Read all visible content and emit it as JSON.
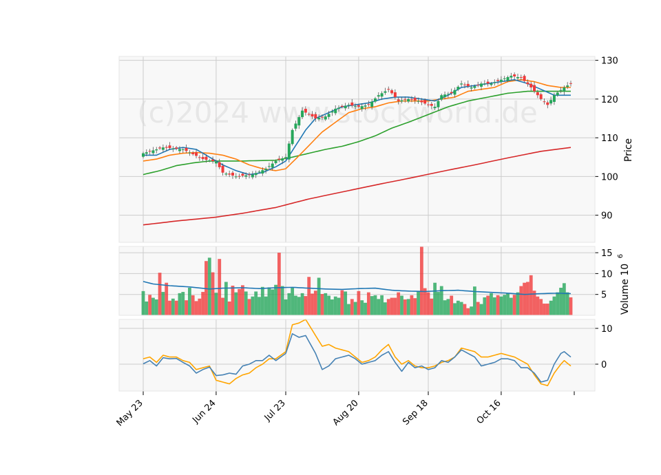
{
  "chart_data": {
    "type": "candlestick",
    "watermark": "(c)2024 www.stockworld.de",
    "colors": {
      "up": "#26a65b",
      "down": "#f03b3b",
      "ma_short": "#1f77b4",
      "ma_mid": "#ff7f0e",
      "ma_long": "#2ca02c",
      "ma_very_long": "#d62728",
      "volume_avg": "#1f77b4",
      "osc_line_1": "#4682b4",
      "osc_line_2": "#ffa500",
      "grid": "#cccccc",
      "panel_bg": "#f8f8f8"
    },
    "x_ticks": [
      {
        "label": "May 23",
        "index": 0
      },
      {
        "label": "Jun 24",
        "index": 22
      },
      {
        "label": "Jul 23",
        "index": 43
      },
      {
        "label": "Aug 20",
        "index": 65
      },
      {
        "label": "Sep 18",
        "index": 86
      },
      {
        "label": "Oct 16",
        "index": 108
      }
    ],
    "price_panel": {
      "ylabel": "Price",
      "ylim": [
        83,
        131
      ],
      "yticks": [
        90,
        100,
        110,
        120,
        130
      ],
      "anchors_close": [
        [
          0,
          106
        ],
        [
          6,
          107.5
        ],
        [
          12,
          107
        ],
        [
          18,
          104.5
        ],
        [
          22,
          103.8
        ],
        [
          24,
          101
        ],
        [
          28,
          100
        ],
        [
          33,
          100.5
        ],
        [
          37,
          102
        ],
        [
          40,
          104
        ],
        [
          43,
          105
        ],
        [
          45,
          112
        ],
        [
          48,
          117
        ],
        [
          52,
          115
        ],
        [
          55,
          115.5
        ],
        [
          58,
          117.5
        ],
        [
          62,
          118.5
        ],
        [
          65,
          118
        ],
        [
          68,
          118.5
        ],
        [
          71,
          121
        ],
        [
          74,
          122.5
        ],
        [
          77,
          119.5
        ],
        [
          80,
          120
        ],
        [
          83,
          119.5
        ],
        [
          86,
          118.5
        ],
        [
          88,
          118
        ],
        [
          90,
          121
        ],
        [
          93,
          121.5
        ],
        [
          96,
          124
        ],
        [
          99,
          123
        ],
        [
          102,
          124
        ],
        [
          105,
          124
        ],
        [
          108,
          125
        ],
        [
          111,
          126
        ],
        [
          114,
          125.5
        ],
        [
          117,
          123
        ],
        [
          120,
          120
        ],
        [
          122,
          118.5
        ],
        [
          124,
          121
        ],
        [
          127,
          123
        ],
        [
          129,
          124
        ]
      ],
      "ma_short_anchors": [
        [
          0,
          105.5
        ],
        [
          4,
          105.5
        ],
        [
          8,
          107
        ],
        [
          12,
          107.5
        ],
        [
          16,
          107
        ],
        [
          20,
          105
        ],
        [
          24,
          103
        ],
        [
          28,
          101.5
        ],
        [
          32,
          100.5
        ],
        [
          36,
          101
        ],
        [
          40,
          102.5
        ],
        [
          43,
          104
        ],
        [
          46,
          108
        ],
        [
          49,
          112
        ],
        [
          52,
          115
        ],
        [
          56,
          116.5
        ],
        [
          60,
          118
        ],
        [
          64,
          118.5
        ],
        [
          68,
          119
        ],
        [
          72,
          120
        ],
        [
          76,
          120.5
        ],
        [
          80,
          120.5
        ],
        [
          84,
          120
        ],
        [
          88,
          119.5
        ],
        [
          92,
          121
        ],
        [
          96,
          123
        ],
        [
          100,
          123.5
        ],
        [
          104,
          124
        ],
        [
          108,
          124.5
        ],
        [
          112,
          125
        ],
        [
          116,
          124
        ],
        [
          120,
          122.5
        ],
        [
          124,
          121
        ],
        [
          129,
          121
        ]
      ],
      "ma_mid_anchors": [
        [
          0,
          104
        ],
        [
          4,
          104.5
        ],
        [
          8,
          105.5
        ],
        [
          12,
          106
        ],
        [
          16,
          106.2
        ],
        [
          20,
          106
        ],
        [
          24,
          105.5
        ],
        [
          28,
          104.5
        ],
        [
          32,
          103
        ],
        [
          36,
          102
        ],
        [
          40,
          101.5
        ],
        [
          43,
          102
        ],
        [
          46,
          104.5
        ],
        [
          50,
          108
        ],
        [
          54,
          111.5
        ],
        [
          58,
          114
        ],
        [
          62,
          116.5
        ],
        [
          66,
          117.5
        ],
        [
          70,
          118
        ],
        [
          74,
          119
        ],
        [
          78,
          119.5
        ],
        [
          82,
          119.5
        ],
        [
          86,
          119.5
        ],
        [
          90,
          120
        ],
        [
          94,
          120.5
        ],
        [
          98,
          122
        ],
        [
          102,
          122.5
        ],
        [
          106,
          123
        ],
        [
          110,
          124.5
        ],
        [
          114,
          125
        ],
        [
          118,
          124.5
        ],
        [
          122,
          123.5
        ],
        [
          126,
          123
        ],
        [
          129,
          123
        ]
      ],
      "ma_long_anchors": [
        [
          0,
          100.5
        ],
        [
          5,
          101.5
        ],
        [
          10,
          102.8
        ],
        [
          15,
          103.5
        ],
        [
          20,
          104
        ],
        [
          30,
          104
        ],
        [
          40,
          104.2
        ],
        [
          45,
          105
        ],
        [
          50,
          106
        ],
        [
          55,
          107
        ],
        [
          60,
          107.8
        ],
        [
          65,
          109
        ],
        [
          70,
          110.5
        ],
        [
          75,
          112.5
        ],
        [
          80,
          114
        ],
        [
          86,
          116
        ],
        [
          92,
          118
        ],
        [
          98,
          119.5
        ],
        [
          104,
          120.5
        ],
        [
          110,
          121.5
        ],
        [
          116,
          122
        ],
        [
          122,
          122
        ],
        [
          129,
          122
        ]
      ],
      "ma_very_long_anchors": [
        [
          0,
          87.5
        ],
        [
          10,
          88.5
        ],
        [
          22,
          89.5
        ],
        [
          30,
          90.5
        ],
        [
          40,
          92
        ],
        [
          50,
          94.2
        ],
        [
          60,
          96
        ],
        [
          70,
          97.8
        ],
        [
          80,
          99.5
        ],
        [
          90,
          101.3
        ],
        [
          100,
          103
        ],
        [
          110,
          104.8
        ],
        [
          120,
          106.5
        ],
        [
          129,
          107.5
        ]
      ]
    },
    "volume_panel": {
      "ylabel": "Volume  10",
      "ylabel_exp": "6",
      "ylim": [
        0,
        16.5
      ],
      "yticks": [
        5,
        10,
        15
      ],
      "volumes_millions": [
        5.8,
        3.3,
        4.9,
        4.2,
        3.8,
        10.2,
        5.6,
        7.8,
        3.5,
        4.0,
        3.5,
        5.3,
        5.6,
        3.6,
        6.6,
        4.8,
        3.4,
        4.0,
        5.6,
        13.0,
        13.8,
        10.3,
        5.4,
        13.5,
        4.2,
        8.0,
        3.3,
        7.1,
        5.5,
        6.3,
        7.2,
        5.7,
        3.9,
        4.5,
        5.7,
        4.4,
        6.8,
        4.5,
        6.7,
        6.2,
        7.3,
        15.0,
        7.0,
        3.8,
        5.3,
        6.6,
        4.7,
        4.4,
        5.3,
        4.6,
        9.2,
        5.2,
        5.9,
        9.0,
        5.1,
        5.3,
        4.7,
        3.8,
        4.5,
        4.2,
        6.0,
        5.7,
        2.7,
        3.9,
        3.2,
        5.8,
        3.6,
        3.0,
        5.5,
        4.6,
        4.8,
        3.9,
        4.8,
        3.1,
        3.9,
        4.2,
        4.2,
        5.5,
        4.7,
        3.8,
        3.9,
        4.8,
        4.1,
        5.7,
        16.5,
        6.5,
        5.5,
        4.0,
        7.8,
        5.6,
        7.0,
        3.6,
        3.9,
        4.7,
        2.9,
        3.5,
        3.2,
        2.7,
        1.7,
        2.1,
        6.9,
        3.2,
        2.7,
        4.3,
        4.7,
        5.3,
        4.3,
        4.8,
        4.5,
        4.9,
        5.3,
        4.2,
        4.9,
        5.5,
        7.0,
        7.8,
        8.0,
        9.6,
        5.9,
        4.5,
        3.9,
        2.8,
        2.8,
        3.5,
        4.5,
        5.5,
        6.6,
        7.7,
        5.5,
        4.3
      ],
      "avg_anchors": [
        [
          0,
          8.1
        ],
        [
          3,
          7.5
        ],
        [
          8,
          7.1
        ],
        [
          14,
          6.8
        ],
        [
          20,
          6.3
        ],
        [
          24,
          6.5
        ],
        [
          30,
          6.6
        ],
        [
          35,
          6.4
        ],
        [
          40,
          6.6
        ],
        [
          45,
          6.7
        ],
        [
          50,
          6.5
        ],
        [
          55,
          6.3
        ],
        [
          60,
          6.2
        ],
        [
          65,
          6.4
        ],
        [
          70,
          6.5
        ],
        [
          75,
          6.0
        ],
        [
          80,
          5.8
        ],
        [
          85,
          5.7
        ],
        [
          90,
          5.9
        ],
        [
          95,
          6.0
        ],
        [
          100,
          5.7
        ],
        [
          105,
          5.5
        ],
        [
          110,
          5.3
        ],
        [
          115,
          5.0
        ],
        [
          120,
          5.2
        ],
        [
          125,
          5.3
        ],
        [
          129,
          5.2
        ]
      ]
    },
    "oscillator_panel": {
      "ylim": [
        -7.5,
        12.5
      ],
      "yticks": [
        0,
        10
      ],
      "line1_anchors": [
        [
          0,
          0.1
        ],
        [
          2,
          1
        ],
        [
          4,
          -0.5
        ],
        [
          6,
          1.8
        ],
        [
          8,
          1.5
        ],
        [
          10,
          1.6
        ],
        [
          12,
          0.5
        ],
        [
          14,
          -0.5
        ],
        [
          16,
          -2.5
        ],
        [
          18,
          -1.5
        ],
        [
          20,
          -0.8
        ],
        [
          22,
          -3.2
        ],
        [
          24,
          -3
        ],
        [
          26,
          -2.5
        ],
        [
          28,
          -2.8
        ],
        [
          30,
          -0.5
        ],
        [
          32,
          0
        ],
        [
          34,
          1
        ],
        [
          36,
          1
        ],
        [
          38,
          2.5
        ],
        [
          40,
          1
        ],
        [
          43,
          3
        ],
        [
          45,
          8.5
        ],
        [
          47,
          7.5
        ],
        [
          49,
          8
        ],
        [
          52,
          3
        ],
        [
          54,
          -1.5
        ],
        [
          56,
          -0.5
        ],
        [
          58,
          1.5
        ],
        [
          60,
          2
        ],
        [
          62,
          2.5
        ],
        [
          64,
          1.5
        ],
        [
          66,
          0
        ],
        [
          68,
          0.5
        ],
        [
          70,
          1
        ],
        [
          72,
          2.5
        ],
        [
          74,
          3.5
        ],
        [
          76,
          0.5
        ],
        [
          78,
          -2
        ],
        [
          80,
          0.5
        ],
        [
          82,
          -1
        ],
        [
          84,
          -0.5
        ],
        [
          86,
          -1.5
        ],
        [
          88,
          -1
        ],
        [
          90,
          1
        ],
        [
          92,
          0.5
        ],
        [
          94,
          2
        ],
        [
          96,
          4
        ],
        [
          98,
          3
        ],
        [
          100,
          2
        ],
        [
          102,
          -0.5
        ],
        [
          104,
          0
        ],
        [
          106,
          0.5
        ],
        [
          108,
          1.5
        ],
        [
          110,
          1.5
        ],
        [
          112,
          1
        ],
        [
          114,
          -1
        ],
        [
          116,
          -1
        ],
        [
          118,
          -2.5
        ],
        [
          120,
          -5
        ],
        [
          122,
          -4.5
        ],
        [
          124,
          0
        ],
        [
          126,
          3
        ],
        [
          127,
          3.5
        ],
        [
          129,
          2
        ]
      ],
      "line2_anchors": [
        [
          0,
          1.5
        ],
        [
          2,
          2
        ],
        [
          4,
          0.5
        ],
        [
          6,
          2.5
        ],
        [
          8,
          2
        ],
        [
          10,
          2
        ],
        [
          12,
          1
        ],
        [
          14,
          0.5
        ],
        [
          16,
          -1.5
        ],
        [
          18,
          -1
        ],
        [
          20,
          -0.5
        ],
        [
          22,
          -4.5
        ],
        [
          24,
          -5
        ],
        [
          26,
          -5.5
        ],
        [
          28,
          -4
        ],
        [
          30,
          -3
        ],
        [
          32,
          -2.5
        ],
        [
          34,
          -1
        ],
        [
          36,
          0
        ],
        [
          38,
          1.5
        ],
        [
          40,
          1.5
        ],
        [
          43,
          3.5
        ],
        [
          45,
          11
        ],
        [
          47,
          11.5
        ],
        [
          49,
          12.5
        ],
        [
          52,
          8
        ],
        [
          54,
          5
        ],
        [
          56,
          5.5
        ],
        [
          58,
          4.5
        ],
        [
          60,
          4
        ],
        [
          62,
          3.5
        ],
        [
          64,
          2
        ],
        [
          66,
          0.5
        ],
        [
          68,
          1
        ],
        [
          70,
          2
        ],
        [
          72,
          4
        ],
        [
          74,
          5.5
        ],
        [
          76,
          2
        ],
        [
          78,
          0
        ],
        [
          80,
          1
        ],
        [
          82,
          -0.5
        ],
        [
          84,
          -1
        ],
        [
          86,
          -1
        ],
        [
          88,
          -0.5
        ],
        [
          90,
          0.5
        ],
        [
          92,
          1
        ],
        [
          94,
          2
        ],
        [
          96,
          4.5
        ],
        [
          98,
          4
        ],
        [
          100,
          3.5
        ],
        [
          102,
          2
        ],
        [
          104,
          2
        ],
        [
          106,
          2.5
        ],
        [
          108,
          3
        ],
        [
          110,
          2.5
        ],
        [
          112,
          2
        ],
        [
          114,
          1
        ],
        [
          116,
          0
        ],
        [
          118,
          -3
        ],
        [
          120,
          -5.5
        ],
        [
          122,
          -6
        ],
        [
          124,
          -2.5
        ],
        [
          126,
          0
        ],
        [
          127,
          1
        ],
        [
          129,
          -0.5
        ]
      ]
    }
  }
}
